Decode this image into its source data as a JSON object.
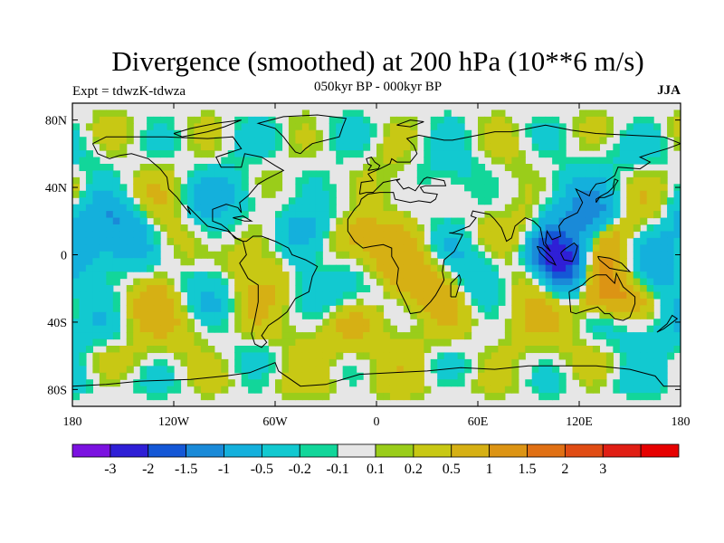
{
  "title": "Divergence (smoothed) at 200 hPa (10**6 m/s)",
  "subtitle": "050kyr BP - 000kyr BP",
  "left_label": "Expt = tdwzK-tdwza",
  "right_label": "JJA",
  "map": {
    "projection": "cylindrical-equidistant",
    "lon_range": [
      -180,
      180
    ],
    "lat_range": [
      -90,
      90
    ],
    "lon_ticks": [
      {
        "value": -180,
        "label": "180"
      },
      {
        "value": -120,
        "label": "120W"
      },
      {
        "value": -60,
        "label": "60W"
      },
      {
        "value": 0,
        "label": "0"
      },
      {
        "value": 60,
        "label": "60E"
      },
      {
        "value": 120,
        "label": "120E"
      },
      {
        "value": 180,
        "label": "180"
      }
    ],
    "lat_ticks": [
      {
        "value": 80,
        "label": "80N"
      },
      {
        "value": 40,
        "label": "40N"
      },
      {
        "value": 0,
        "label": "0"
      },
      {
        "value": -40,
        "label": "40S"
      },
      {
        "value": -80,
        "label": "80S"
      }
    ],
    "background_color": "#e6e6e6",
    "coastline_color": "#000000"
  },
  "colorbar": {
    "colors": [
      "#7b12e0",
      "#2f1fd6",
      "#1457d6",
      "#1a8ad8",
      "#14b0dc",
      "#12c9d0",
      "#12d69a",
      "#e6e6e6",
      "#9acd1a",
      "#c8c814",
      "#d6b014",
      "#dc9414",
      "#e07014",
      "#e04c14",
      "#e01e14",
      "#e60000"
    ],
    "labels": [
      "-3",
      "-2",
      "-1.5",
      "-1",
      "-0.5",
      "-0.2",
      "-0.1",
      "0.1",
      "0.2",
      "0.5",
      "1",
      "1.5",
      "2",
      "3"
    ]
  },
  "features": [
    {
      "lon": -170,
      "lat": 78,
      "value": 0.2
    },
    {
      "lon": -150,
      "lat": 80,
      "value": 0.3
    },
    {
      "lon": -110,
      "lat": 78,
      "value": 0.2
    },
    {
      "lon": -60,
      "lat": 80,
      "value": -0.5
    },
    {
      "lon": -20,
      "lat": 80,
      "value": 0.3
    },
    {
      "lon": 20,
      "lat": 82,
      "value": -0.3
    },
    {
      "lon": 70,
      "lat": 80,
      "value": 0.3
    },
    {
      "lon": 120,
      "lat": 78,
      "value": -0.3
    },
    {
      "lon": 160,
      "lat": 80,
      "value": 0.2
    },
    {
      "lon": -160,
      "lat": 62,
      "value": -0.5
    },
    {
      "lon": -120,
      "lat": 60,
      "value": 0.4
    },
    {
      "lon": -95,
      "lat": 62,
      "value": -0.6
    },
    {
      "lon": -60,
      "lat": 58,
      "value": 0.5
    },
    {
      "lon": -40,
      "lat": 62,
      "value": -0.6
    },
    {
      "lon": 0,
      "lat": 62,
      "value": 0.4
    },
    {
      "lon": 40,
      "lat": 60,
      "value": -0.5
    },
    {
      "lon": 90,
      "lat": 62,
      "value": 0.4
    },
    {
      "lon": 140,
      "lat": 60,
      "value": -0.4
    },
    {
      "lon": -130,
      "lat": 40,
      "value": 0.5
    },
    {
      "lon": -105,
      "lat": 38,
      "value": -0.6
    },
    {
      "lon": -75,
      "lat": 35,
      "value": -0.8
    },
    {
      "lon": -50,
      "lat": 40,
      "value": 0.6
    },
    {
      "lon": -25,
      "lat": 38,
      "value": -0.5
    },
    {
      "lon": 10,
      "lat": 40,
      "value": 0.5
    },
    {
      "lon": 45,
      "lat": 42,
      "value": -0.5
    },
    {
      "lon": 80,
      "lat": 40,
      "value": 0.4
    },
    {
      "lon": 110,
      "lat": 42,
      "value": -0.5
    },
    {
      "lon": 160,
      "lat": 40,
      "value": 0.3
    },
    {
      "lon": -170,
      "lat": 15,
      "value": -0.8
    },
    {
      "lon": -150,
      "lat": 10,
      "value": -1.5
    },
    {
      "lon": -120,
      "lat": 10,
      "value": 0.6
    },
    {
      "lon": -95,
      "lat": 12,
      "value": -0.6
    },
    {
      "lon": -75,
      "lat": 5,
      "value": 0.9
    },
    {
      "lon": -45,
      "lat": 8,
      "value": -1.2
    },
    {
      "lon": -15,
      "lat": 2,
      "value": 1.3
    },
    {
      "lon": 15,
      "lat": 6,
      "value": 0.8
    },
    {
      "lon": 40,
      "lat": 10,
      "value": -0.5
    },
    {
      "lon": 70,
      "lat": 15,
      "value": 0.5
    },
    {
      "lon": 120,
      "lat": 25,
      "value": -1.5
    },
    {
      "lon": 145,
      "lat": 0,
      "value": 1.8
    },
    {
      "lon": 110,
      "lat": -5,
      "value": -3
    },
    {
      "lon": 155,
      "lat": -5,
      "value": -2
    },
    {
      "lon": 90,
      "lat": -20,
      "value": 0.8
    },
    {
      "lon": 140,
      "lat": -18,
      "value": 2.2
    },
    {
      "lon": -150,
      "lat": -15,
      "value": -0.6
    },
    {
      "lon": -140,
      "lat": -25,
      "value": 1.2
    },
    {
      "lon": -100,
      "lat": -20,
      "value": -0.6
    },
    {
      "lon": -70,
      "lat": -12,
      "value": 0.7
    },
    {
      "lon": -20,
      "lat": -15,
      "value": -0.8
    },
    {
      "lon": 30,
      "lat": -15,
      "value": 1.0
    },
    {
      "lon": 65,
      "lat": -10,
      "value": -0.8
    },
    {
      "lon": -170,
      "lat": -42,
      "value": -0.6
    },
    {
      "lon": -120,
      "lat": -45,
      "value": 0.5
    },
    {
      "lon": -60,
      "lat": -45,
      "value": 0.4
    },
    {
      "lon": -10,
      "lat": -48,
      "value": 0.6
    },
    {
      "lon": 40,
      "lat": -45,
      "value": 0.3
    },
    {
      "lon": 90,
      "lat": -48,
      "value": 0.5
    },
    {
      "lon": 150,
      "lat": -45,
      "value": -0.5
    },
    {
      "lon": -150,
      "lat": -65,
      "value": 0.5
    },
    {
      "lon": -80,
      "lat": -60,
      "value": -0.4
    },
    {
      "lon": 0,
      "lat": -60,
      "value": 0.2
    },
    {
      "lon": 60,
      "lat": -62,
      "value": -0.3
    },
    {
      "lon": 120,
      "lat": -60,
      "value": 0.3
    },
    {
      "lon": -160,
      "lat": -78,
      "value": -0.6
    },
    {
      "lon": -90,
      "lat": -80,
      "value": 0.4
    },
    {
      "lon": 0,
      "lat": -80,
      "value": 0.3
    },
    {
      "lon": 80,
      "lat": -80,
      "value": 0.2
    },
    {
      "lon": 160,
      "lat": -78,
      "value": -0.4
    }
  ]
}
